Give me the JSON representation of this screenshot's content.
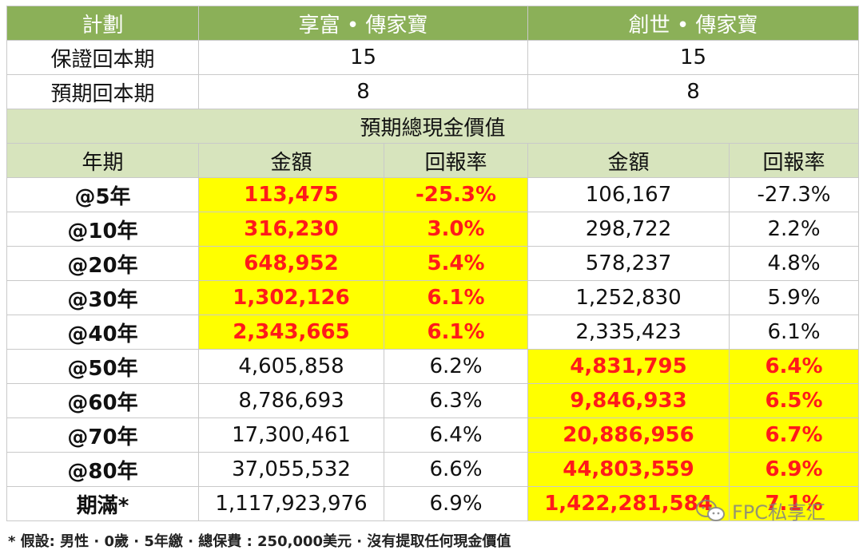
{
  "table": {
    "header": {
      "plan": "計劃",
      "plan_a": "享富 • 傳家寶",
      "plan_b": "創世 • 傳家寶"
    },
    "guaranteed": {
      "label": "保證回本期",
      "a": "15",
      "b": "15"
    },
    "expected": {
      "label": "預期回本期",
      "a": "8",
      "b": "8"
    },
    "section_title": "預期總現金價值",
    "col_headers": {
      "year": "年期",
      "amount_a": "金額",
      "return_a": "回報率",
      "amount_b": "金額",
      "return_b": "回報率"
    },
    "rows": [
      {
        "year": "@5年",
        "amount_a": "113,475",
        "return_a": "-25.3%",
        "amount_b": "106,167",
        "return_b": "-27.3%"
      },
      {
        "year": "@10年",
        "amount_a": "316,230",
        "return_a": "3.0%",
        "amount_b": "298,722",
        "return_b": "2.2%"
      },
      {
        "year": "@20年",
        "amount_a": "648,952",
        "return_a": "5.4%",
        "amount_b": "578,237",
        "return_b": "4.8%"
      },
      {
        "year": "@30年",
        "amount_a": "1,302,126",
        "return_a": "6.1%",
        "amount_b": "1,252,830",
        "return_b": "5.9%"
      },
      {
        "year": "@40年",
        "amount_a": "2,343,665",
        "return_a": "6.1%",
        "amount_b": "2,335,423",
        "return_b": "6.1%"
      },
      {
        "year": "@50年",
        "amount_a": "4,605,858",
        "return_a": "6.2%",
        "amount_b": "4,831,795",
        "return_b": "6.4%"
      },
      {
        "year": "@60年",
        "amount_a": "8,786,693",
        "return_a": "6.3%",
        "amount_b": "9,846,933",
        "return_b": "6.5%"
      },
      {
        "year": "@70年",
        "amount_a": "17,300,461",
        "return_a": "6.4%",
        "amount_b": "20,886,956",
        "return_b": "6.7%"
      },
      {
        "year": "@80年",
        "amount_a": "37,055,532",
        "return_a": "6.6%",
        "amount_b": "44,803,559",
        "return_b": "6.9%"
      },
      {
        "year": "期滿*",
        "amount_a": "1,117,923,976",
        "return_a": "6.9%",
        "amount_b": "1,422,281,584",
        "return_b": "7.1%"
      }
    ]
  },
  "footnote": "* 假設: 男性 · 0歲 · 5年繳 · 總保費 : 250,000美元 · 沒有提取任何現金價值",
  "watermark": {
    "text": "FPC私享汇",
    "icon": "wechat-icon"
  },
  "colors": {
    "header_green": "#8bb058",
    "section_green": "#d7e4bd",
    "highlight_yellow": "#ffff00",
    "highlight_red": "#ff1a1a"
  }
}
